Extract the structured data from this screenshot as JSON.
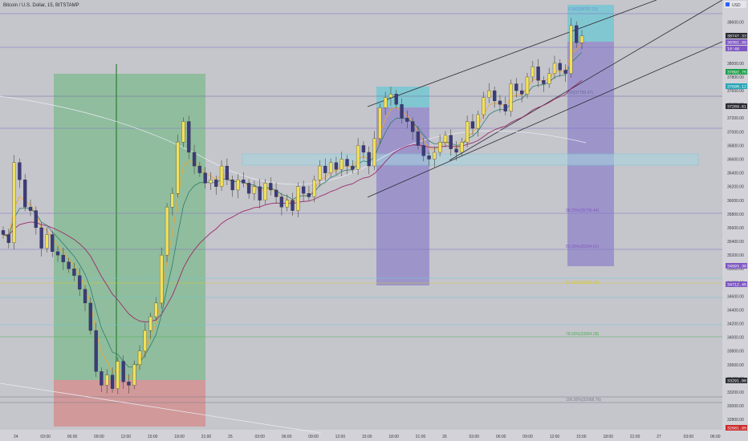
{
  "header": {
    "symbol": "Bitcoin / U.S. Dollar, 15, BITSTAMP",
    "currency_button": "USD"
  },
  "price_axis": {
    "ticks": [
      "38600.00",
      "38200.00",
      "38000.00",
      "37800.00",
      "37600.00",
      "37400.00",
      "37200.00",
      "37000.00",
      "36800.00",
      "36600.00",
      "36400.00",
      "36200.00",
      "36000.00",
      "35800.00",
      "35600.00",
      "35400.00",
      "35200.00",
      "35000.00",
      "34800.00",
      "34600.00",
      "34400.00",
      "34200.00",
      "34000.00",
      "33800.00",
      "33600.00",
      "33400.00",
      "33200.00",
      "33000.00",
      "32800.00"
    ]
  },
  "time_axis": {
    "ticks": [
      "24",
      "03:00",
      "06:00",
      "09:00",
      "12:00",
      "15:00",
      "18:00",
      "21:00",
      "25",
      "03:00",
      "06:00",
      "09:00",
      "12:00",
      "15:00",
      "18:00",
      "21:00",
      "26",
      "03:00",
      "06:00",
      "09:00",
      "12:00",
      "15:00",
      "18:00",
      "21:00",
      "27",
      "03:00",
      "06:00"
    ]
  },
  "price_badges": [
    {
      "label": "38747.33",
      "color": "#2b2b33"
    },
    {
      "label": "38302.99",
      "color": "#7e57c2"
    },
    {
      "label": "10:48",
      "color": "#7e57c2"
    },
    {
      "label": "37892.75",
      "color": "#1e9e4a"
    },
    {
      "label": "37690.12",
      "color": "#26a6b8"
    },
    {
      "label": "37269.61",
      "color": "#2b2b33"
    },
    {
      "label": "34993.38",
      "color": "#7e57c2"
    },
    {
      "label": "34712.45",
      "color": "#7e57c2"
    },
    {
      "label": "33291.00",
      "color": "#2b2b33"
    },
    {
      "label": "32601.95",
      "color": "#cc2a2a"
    }
  ],
  "fib_labels": [
    {
      "text": "0.382(38787.23)",
      "color": "#6c8fd6"
    },
    {
      "text": "0.00(37750.47)",
      "color": "#6c6c9a"
    },
    {
      "text": "38.20%(35799.44)",
      "color": "#7e57c2"
    },
    {
      "text": "50.00%(35294.61)",
      "color": "#7e57c2"
    },
    {
      "text": "61.80%(34712.59)",
      "color": "#d4c832"
    },
    {
      "text": "78.60%(33964.28)",
      "color": "#4caf50"
    },
    {
      "text": "100.00%(32958.76)",
      "color": "#7a7a88"
    }
  ],
  "chart_data": {
    "type": "candlestick",
    "title": "Bitcoin / U.S. Dollar, 15, BITSTAMP",
    "ylim": [
      32650,
      38900
    ],
    "series": [
      {
        "name": "price",
        "values": [
          35500,
          35380,
          36550,
          36300,
          35900,
          35850,
          35600,
          35300,
          35500,
          35250,
          35200,
          35100,
          35000,
          34900,
          34700,
          34500,
          34100,
          33500,
          33300,
          33450,
          33250,
          33650,
          33350,
          33300,
          33600,
          33800,
          34100,
          34300,
          34500,
          35200,
          35900,
          36100,
          36850,
          37150,
          36700,
          36500,
          36400,
          36250,
          36300,
          36200,
          36500,
          36300,
          36150,
          36300,
          36250,
          36100,
          36200,
          36000,
          36250,
          36150,
          36050,
          35900,
          36000,
          35850,
          36200,
          36100,
          36050,
          36300,
          36500,
          36400,
          36550,
          36450,
          36600,
          36500,
          36450,
          36800,
          36700,
          36500,
          36900,
          37350,
          37500,
          37550,
          37400,
          37200,
          37150,
          37000,
          36800,
          36650,
          36600,
          36700,
          36850,
          36950,
          36750,
          36700,
          36850,
          37150,
          37050,
          37250,
          37500,
          37600,
          37450,
          37400,
          37300,
          37700,
          37600,
          37550,
          37800,
          37950,
          37750,
          37700,
          37850,
          38000,
          37900,
          37850,
          38550,
          38300,
          38400
        ]
      },
      {
        "name": "ema-fast",
        "values": []
      },
      {
        "name": "ema-slow",
        "values": []
      }
    ]
  }
}
